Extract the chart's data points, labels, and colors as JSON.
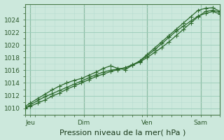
{
  "background_color": "#cce8dc",
  "plot_bg_color": "#cce8dc",
  "grid_color_minor": "#b8ddd0",
  "grid_color_major": "#99ccb8",
  "line_color": "#2d6a2d",
  "title": "Pression niveau de la mer( hPa )",
  "ylabel_ticks": [
    1010,
    1012,
    1014,
    1016,
    1018,
    1020,
    1022,
    1024
  ],
  "ylim": [
    1009.0,
    1026.5
  ],
  "xlim": [
    0,
    80
  ],
  "xtick_positions": [
    2,
    24,
    50,
    72
  ],
  "xtick_labels": [
    "Jeu",
    "Dim",
    "Ven",
    "Sam"
  ],
  "vline_positions": [
    2,
    24,
    50,
    72
  ],
  "line1_x": [
    0,
    2,
    5,
    8,
    11,
    14,
    17,
    20,
    23,
    26,
    29,
    32,
    35,
    38,
    41,
    44,
    47,
    50,
    53,
    56,
    59,
    62,
    65,
    68,
    71,
    74,
    77,
    80
  ],
  "line1_y": [
    1010.1,
    1010.3,
    1010.8,
    1011.3,
    1011.9,
    1012.4,
    1013.0,
    1013.5,
    1014.0,
    1014.5,
    1015.0,
    1015.4,
    1015.8,
    1016.1,
    1016.4,
    1016.8,
    1017.3,
    1018.0,
    1018.8,
    1019.6,
    1020.5,
    1021.5,
    1022.5,
    1023.5,
    1024.5,
    1025.3,
    1025.5,
    1025.2
  ],
  "line2_x": [
    0,
    2,
    5,
    8,
    11,
    14,
    17,
    20,
    23,
    26,
    29,
    32,
    35,
    38,
    41,
    44,
    47,
    50,
    53,
    56,
    59,
    62,
    65,
    68,
    71,
    74,
    77,
    80
  ],
  "line2_y": [
    1010.3,
    1010.8,
    1011.5,
    1012.2,
    1012.9,
    1013.5,
    1014.0,
    1014.4,
    1014.7,
    1015.2,
    1015.7,
    1016.3,
    1016.7,
    1016.3,
    1016.1,
    1016.8,
    1017.5,
    1018.5,
    1019.5,
    1020.5,
    1021.5,
    1022.5,
    1023.5,
    1024.5,
    1025.5,
    1025.8,
    1025.9,
    1025.3
  ],
  "line3_x": [
    0,
    2,
    5,
    8,
    11,
    14,
    17,
    20,
    23,
    26,
    29,
    32,
    35,
    38,
    41,
    44,
    47,
    50,
    53,
    56,
    59,
    62,
    65,
    68,
    71,
    74,
    77,
    80
  ],
  "line3_y": [
    1010.0,
    1010.5,
    1011.2,
    1011.8,
    1012.3,
    1012.8,
    1013.3,
    1013.8,
    1014.3,
    1014.8,
    1015.3,
    1015.7,
    1016.0,
    1016.2,
    1016.4,
    1016.9,
    1017.4,
    1018.3,
    1019.2,
    1020.2,
    1021.2,
    1022.2,
    1023.0,
    1023.8,
    1024.6,
    1025.0,
    1025.3,
    1024.9
  ],
  "marker_size": 2.5,
  "linewidth": 0.9,
  "tick_fontsize": 6.5,
  "xlabel_fontsize": 8
}
